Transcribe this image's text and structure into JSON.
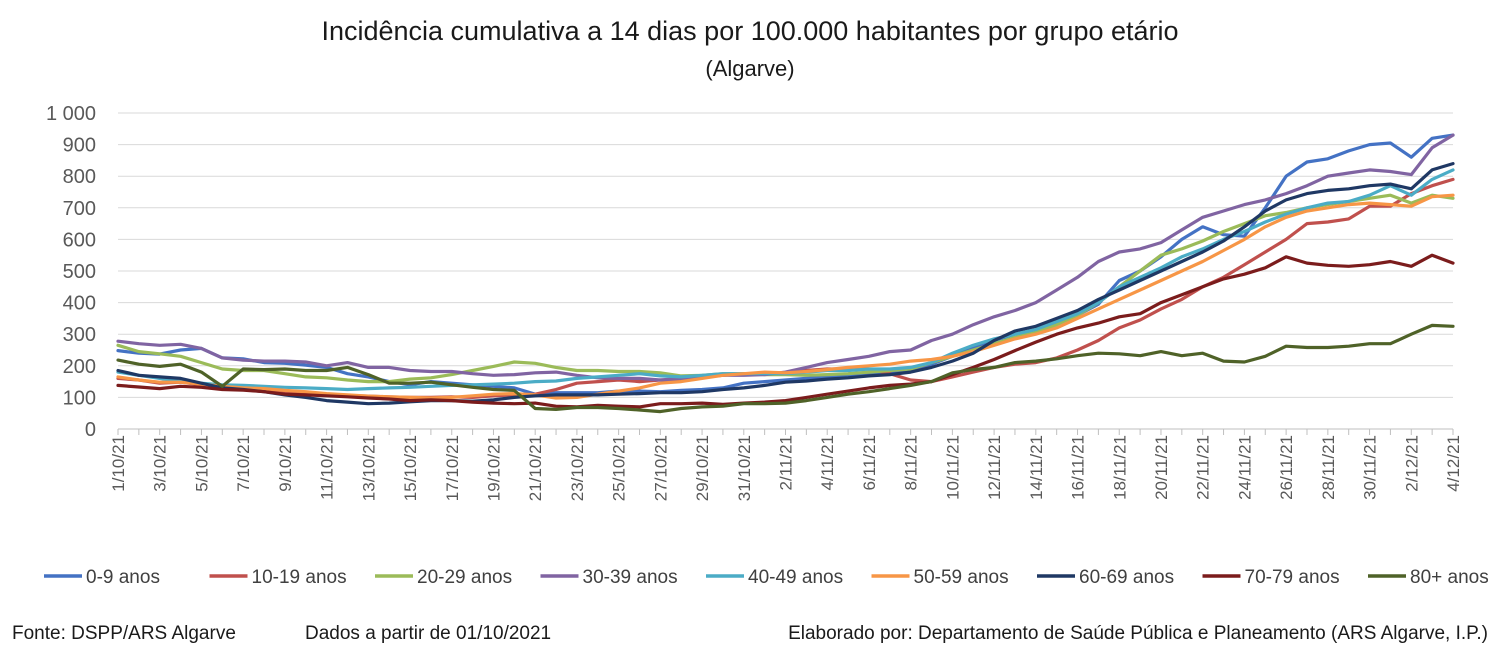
{
  "chart_data": {
    "type": "line",
    "title": "Incidência cumulativa a 14 dias por 100.000 habitantes por grupo etário",
    "subtitle": "(Algarve)",
    "xlabel": "",
    "ylabel": "",
    "ylim": [
      0,
      1000
    ],
    "yticks": [
      0,
      100,
      200,
      300,
      400,
      500,
      600,
      700,
      800,
      900,
      1000
    ],
    "ytick_labels": [
      "0",
      "100",
      "200",
      "300",
      "400",
      "500",
      "600",
      "700",
      "800",
      "900",
      "1 000"
    ],
    "grid": true,
    "legend_position": "bottom",
    "x": [
      "1/10/21",
      "2/10/21",
      "3/10/21",
      "4/10/21",
      "5/10/21",
      "6/10/21",
      "7/10/21",
      "8/10/21",
      "9/10/21",
      "10/10/21",
      "11/10/21",
      "12/10/21",
      "13/10/21",
      "14/10/21",
      "15/10/21",
      "16/10/21",
      "17/10/21",
      "18/10/21",
      "19/10/21",
      "20/10/21",
      "21/10/21",
      "22/10/21",
      "23/10/21",
      "24/10/21",
      "25/10/21",
      "26/10/21",
      "27/10/21",
      "28/10/21",
      "29/10/21",
      "30/10/21",
      "31/10/21",
      "1/11/21",
      "2/11/21",
      "3/11/21",
      "4/11/21",
      "5/11/21",
      "6/11/21",
      "7/11/21",
      "8/11/21",
      "9/11/21",
      "10/11/21",
      "11/11/21",
      "12/11/21",
      "13/11/21",
      "14/11/21",
      "15/11/21",
      "16/11/21",
      "17/11/21",
      "18/11/21",
      "19/11/21",
      "20/11/21",
      "21/11/21",
      "22/11/21",
      "23/11/21",
      "24/11/21",
      "25/11/21",
      "26/11/21",
      "27/11/21",
      "28/11/21",
      "29/11/21",
      "30/11/21",
      "1/12/21",
      "2/12/21",
      "3/12/21",
      "4/12/21"
    ],
    "series": [
      {
        "name": "0-9 anos",
        "color": "#4472C4",
        "values": [
          248,
          240,
          237,
          250,
          255,
          225,
          222,
          210,
          208,
          202,
          195,
          175,
          165,
          150,
          140,
          150,
          145,
          140,
          135,
          130,
          110,
          115,
          115,
          115,
          120,
          120,
          118,
          122,
          125,
          130,
          145,
          150,
          155,
          160,
          165,
          170,
          175,
          180,
          185,
          205,
          230,
          255,
          280,
          300,
          310,
          335,
          360,
          395,
          470,
          500,
          545,
          600,
          640,
          615,
          610,
          700,
          800,
          845,
          855,
          880,
          900,
          905,
          860,
          920,
          930
        ]
      },
      {
        "name": "10-19 anos",
        "color": "#C0504D",
        "values": [
          160,
          155,
          145,
          148,
          140,
          130,
          128,
          120,
          115,
          110,
          108,
          106,
          104,
          102,
          100,
          100,
          102,
          100,
          105,
          108,
          110,
          125,
          145,
          150,
          155,
          150,
          155,
          155,
          165,
          170,
          175,
          175,
          178,
          185,
          190,
          190,
          190,
          175,
          155,
          150,
          165,
          180,
          195,
          205,
          210,
          225,
          250,
          280,
          320,
          345,
          380,
          410,
          450,
          480,
          520,
          560,
          600,
          650,
          655,
          665,
          705,
          705,
          745,
          770,
          790
        ]
      },
      {
        "name": "20-29 anos",
        "color": "#9BBB59",
        "values": [
          265,
          245,
          238,
          230,
          210,
          190,
          185,
          185,
          175,
          165,
          162,
          155,
          150,
          150,
          158,
          162,
          172,
          185,
          198,
          212,
          208,
          195,
          185,
          185,
          182,
          182,
          178,
          168,
          170,
          175,
          175,
          172,
          172,
          170,
          172,
          175,
          180,
          185,
          190,
          210,
          230,
          250,
          270,
          290,
          305,
          330,
          360,
          400,
          450,
          500,
          550,
          570,
          595,
          625,
          650,
          675,
          685,
          700,
          710,
          720,
          730,
          740,
          715,
          740,
          730
        ]
      },
      {
        "name": "30-39 anos",
        "color": "#8064A2",
        "values": [
          278,
          270,
          265,
          268,
          255,
          225,
          218,
          215,
          215,
          212,
          200,
          210,
          195,
          195,
          185,
          182,
          182,
          175,
          170,
          172,
          178,
          180,
          170,
          162,
          160,
          160,
          155,
          160,
          165,
          170,
          170,
          172,
          180,
          195,
          210,
          220,
          230,
          245,
          250,
          280,
          300,
          330,
          355,
          375,
          400,
          440,
          480,
          530,
          560,
          570,
          590,
          630,
          670,
          690,
          710,
          725,
          745,
          770,
          800,
          810,
          820,
          815,
          805,
          890,
          930
        ]
      },
      {
        "name": "40-49 anos",
        "color": "#4BACC6",
        "values": [
          180,
          170,
          160,
          150,
          145,
          140,
          138,
          135,
          132,
          130,
          128,
          125,
          128,
          130,
          132,
          135,
          138,
          140,
          142,
          145,
          150,
          152,
          160,
          165,
          170,
          175,
          168,
          165,
          170,
          175,
          175,
          175,
          175,
          180,
          185,
          185,
          190,
          190,
          195,
          210,
          240,
          265,
          285,
          300,
          315,
          340,
          365,
          400,
          450,
          480,
          510,
          545,
          570,
          600,
          625,
          655,
          680,
          700,
          715,
          720,
          740,
          770,
          740,
          790,
          820
        ]
      },
      {
        "name": "50-59 anos",
        "color": "#F79646",
        "values": [
          165,
          155,
          148,
          148,
          142,
          135,
          130,
          128,
          122,
          118,
          112,
          108,
          104,
          102,
          100,
          98,
          100,
          105,
          110,
          112,
          108,
          98,
          100,
          110,
          120,
          130,
          145,
          150,
          160,
          170,
          175,
          180,
          178,
          182,
          188,
          195,
          200,
          205,
          215,
          220,
          230,
          245,
          265,
          285,
          300,
          320,
          350,
          380,
          410,
          440,
          470,
          500,
          530,
          565,
          600,
          640,
          670,
          690,
          700,
          710,
          715,
          710,
          705,
          735,
          740
        ]
      },
      {
        "name": "60-69 anos",
        "color": "#1F3864",
        "values": [
          185,
          170,
          165,
          160,
          145,
          130,
          125,
          118,
          108,
          100,
          90,
          85,
          80,
          82,
          86,
          90,
          90,
          88,
          92,
          100,
          105,
          108,
          108,
          108,
          110,
          112,
          115,
          115,
          118,
          125,
          130,
          138,
          148,
          152,
          158,
          162,
          168,
          172,
          180,
          195,
          215,
          240,
          280,
          310,
          325,
          350,
          375,
          410,
          440,
          470,
          500,
          530,
          560,
          595,
          640,
          690,
          725,
          745,
          755,
          760,
          770,
          775,
          760,
          820,
          840
        ]
      },
      {
        "name": "70-79 anos",
        "color": "#7B1C1C",
        "values": [
          138,
          133,
          128,
          135,
          132,
          125,
          123,
          118,
          110,
          108,
          105,
          102,
          98,
          95,
          90,
          92,
          90,
          85,
          82,
          80,
          82,
          72,
          70,
          75,
          72,
          70,
          80,
          80,
          82,
          78,
          82,
          85,
          90,
          100,
          110,
          120,
          130,
          138,
          142,
          150,
          172,
          195,
          220,
          248,
          275,
          300,
          320,
          335,
          355,
          365,
          400,
          425,
          450,
          475,
          490,
          510,
          545,
          525,
          518,
          515,
          520,
          530,
          515,
          550,
          525
        ]
      },
      {
        "name": "80+ anos",
        "color": "#4F6228",
        "values": [
          218,
          205,
          198,
          205,
          180,
          135,
          190,
          188,
          190,
          185,
          185,
          195,
          172,
          145,
          145,
          148,
          140,
          132,
          125,
          122,
          65,
          62,
          68,
          68,
          65,
          60,
          55,
          65,
          70,
          72,
          80,
          80,
          82,
          90,
          100,
          110,
          118,
          128,
          138,
          150,
          178,
          188,
          195,
          210,
          215,
          222,
          232,
          240,
          238,
          232,
          245,
          232,
          240,
          215,
          212,
          230,
          262,
          258,
          258,
          262,
          270,
          270,
          300,
          328,
          325
        ]
      }
    ]
  },
  "footer": {
    "source": "Fonte: DSPP/ARS Algarve",
    "date_note": "Dados a partir de 01/10/2021",
    "author": "Elaborado por: Departamento de Saúde Pública e Planeamento (ARS Algarve, I.P.)"
  }
}
